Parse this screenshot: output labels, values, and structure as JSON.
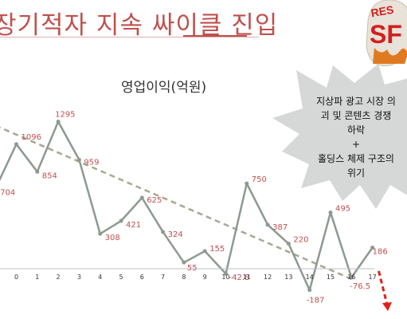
{
  "slide": {
    "title": "장기적자 지속 싸이클 진입",
    "logo_text_top": "RES",
    "logo_text_big": "SF"
  },
  "callout": {
    "lines": [
      "지상파 광고 시장 의",
      "괴 및 콘텐츠 경쟁",
      "하락",
      "+",
      "홀딩스 체제 구조의",
      "위기"
    ]
  },
  "colors": {
    "title": "#c0504d",
    "line": "#8c9a8f",
    "label": "#c0504d",
    "trend": "#a8a890",
    "burst": "#d5d8d6",
    "arrow": "#e0201a"
  },
  "chart_data": {
    "type": "line",
    "title": "영업이익(억원)",
    "x_ticks": [
      "0",
      "1",
      "2",
      "3",
      "4",
      "5",
      "6",
      "7",
      "8",
      "9",
      "10",
      "11",
      "12",
      "13",
      "14",
      "15",
      "16",
      "17"
    ],
    "series": [
      {
        "values": [
          704,
          1096,
          854,
          1295,
          959,
          308,
          421,
          625,
          324,
          55,
          155,
          -42.8,
          750,
          387,
          220,
          -187,
          495,
          -76.5,
          186
        ],
        "labels": [
          "704",
          "1096",
          "854",
          "1295",
          "959",
          "308",
          "421",
          "625",
          "324",
          "55",
          "155",
          "-42.8",
          "750",
          "387",
          "220",
          "-187",
          "495",
          "-76.5",
          "186"
        ]
      }
    ],
    "trend_line": {
      "style": "dashed",
      "from": [
        -1,
        1260
      ],
      "to": [
        16,
        -90
      ]
    },
    "forecast_arrow": {
      "style": "dashed",
      "from": [
        17.3,
        -20
      ],
      "to": [
        17.7,
        -500
      ]
    },
    "grid": false,
    "legend": "none"
  }
}
